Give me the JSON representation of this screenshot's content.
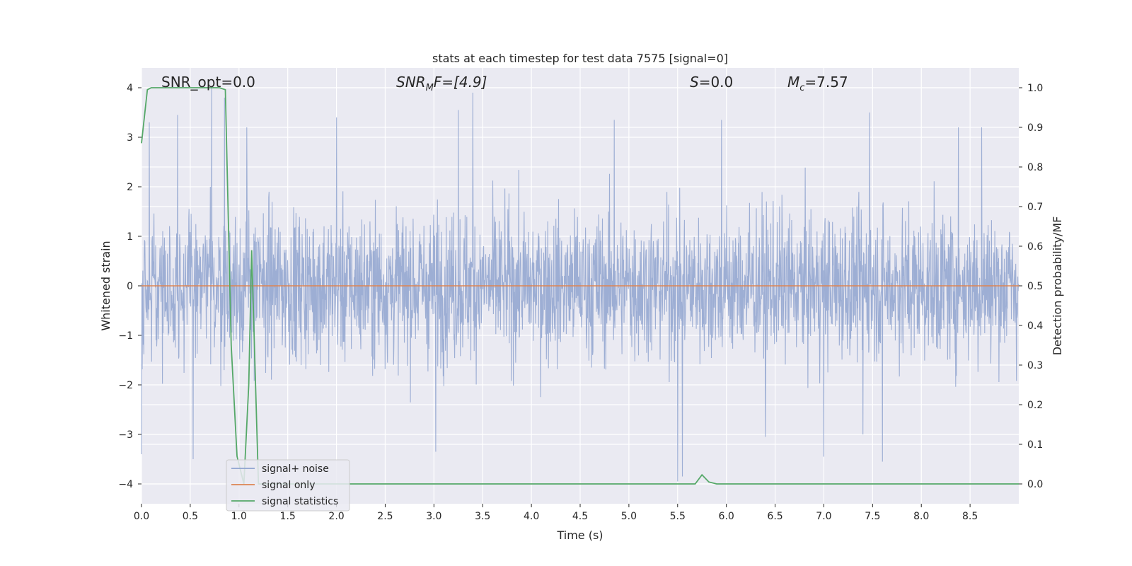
{
  "chart_data": {
    "type": "line",
    "title": "stats at each timestep for test data 7575 [signal=0]",
    "xlabel": "Time (s)",
    "ylabel": "Whitened strain",
    "y2label": "Detection probability/MF",
    "xlim": [
      0,
      9.0
    ],
    "ylim": [
      -4.4,
      4.4
    ],
    "y2lim": [
      -0.05,
      1.05
    ],
    "xticks": [
      "0.0",
      "0.5",
      "1.0",
      "1.5",
      "2.0",
      "2.5",
      "3.0",
      "3.5",
      "4.0",
      "4.5",
      "5.0",
      "5.5",
      "6.0",
      "6.5",
      "7.0",
      "7.5",
      "8.0",
      "8.5"
    ],
    "yticks": [
      "4",
      "3",
      "2",
      "1",
      "0",
      "−1",
      "−2",
      "−3",
      "−4"
    ],
    "y2ticks": [
      "1.0",
      "0.9",
      "0.8",
      "0.7",
      "0.6",
      "0.5",
      "0.4",
      "0.3",
      "0.2",
      "0.1",
      "0.0"
    ],
    "grid": true,
    "legend_position": "lower-left",
    "annotations": {
      "snr_opt": "SNR_opt=0.0",
      "snr_mf_main": "SNR",
      "snr_mf_sub": "M",
      "snr_mf_rest": "F=[4.9]",
      "s_label_main": "S",
      "s_label_rest": "=0.0",
      "mc_main": "M",
      "mc_sub": "c",
      "mc_rest": "=7.57"
    },
    "series": [
      {
        "name": "signal+ noise",
        "color": "#8fa3cf",
        "axis": "left",
        "description_values": {
          "typical_envelope": [
            -2.3,
            2.4
          ],
          "peaks": [
            [
              0.08,
              3.3
            ],
            [
              0.37,
              3.45
            ],
            [
              0.72,
              4.0
            ],
            [
              0.85,
              3.8
            ],
            [
              1.08,
              3.2
            ],
            [
              2.0,
              3.4
            ],
            [
              3.4,
              3.9
            ],
            [
              3.25,
              3.55
            ],
            [
              4.85,
              3.35
            ],
            [
              5.95,
              3.35
            ],
            [
              7.47,
              3.5
            ],
            [
              8.38,
              3.2
            ],
            [
              8.62,
              3.2
            ]
          ],
          "troughs": [
            [
              0.0,
              -3.4
            ],
            [
              0.53,
              -3.5
            ],
            [
              3.02,
              -3.35
            ],
            [
              5.5,
              -3.95
            ],
            [
              5.55,
              -3.85
            ],
            [
              6.4,
              -3.05
            ],
            [
              7.0,
              -3.45
            ],
            [
              7.6,
              -3.55
            ],
            [
              7.4,
              -3.0
            ]
          ]
        }
      },
      {
        "name": "signal only",
        "color": "#dd8452",
        "axis": "left",
        "x": [
          0.0,
          9.0
        ],
        "y": [
          0.0,
          0.0
        ]
      },
      {
        "name": "signal statistics",
        "color": "#55a868",
        "axis": "right",
        "x": [
          0.0,
          0.06,
          0.1,
          0.2,
          0.3,
          0.5,
          0.7,
          0.8,
          0.86,
          0.92,
          0.98,
          1.05,
          1.1,
          1.13,
          1.17,
          1.2,
          1.25,
          1.4,
          2.0,
          3.0,
          4.0,
          5.0,
          5.5,
          5.68,
          5.75,
          5.82,
          5.9,
          6.0,
          7.0,
          8.0,
          9.0
        ],
        "y": [
          0.86,
          0.995,
          1.0,
          1.0,
          1.0,
          1.0,
          1.0,
          1.0,
          0.995,
          0.35,
          0.07,
          0.0,
          0.25,
          0.59,
          0.25,
          0.0,
          0.0,
          0.0,
          0.0,
          0.0,
          0.0,
          0.0,
          0.0,
          0.0,
          0.023,
          0.005,
          0.0,
          0.0,
          0.0,
          0.0,
          0.0
        ]
      }
    ]
  }
}
